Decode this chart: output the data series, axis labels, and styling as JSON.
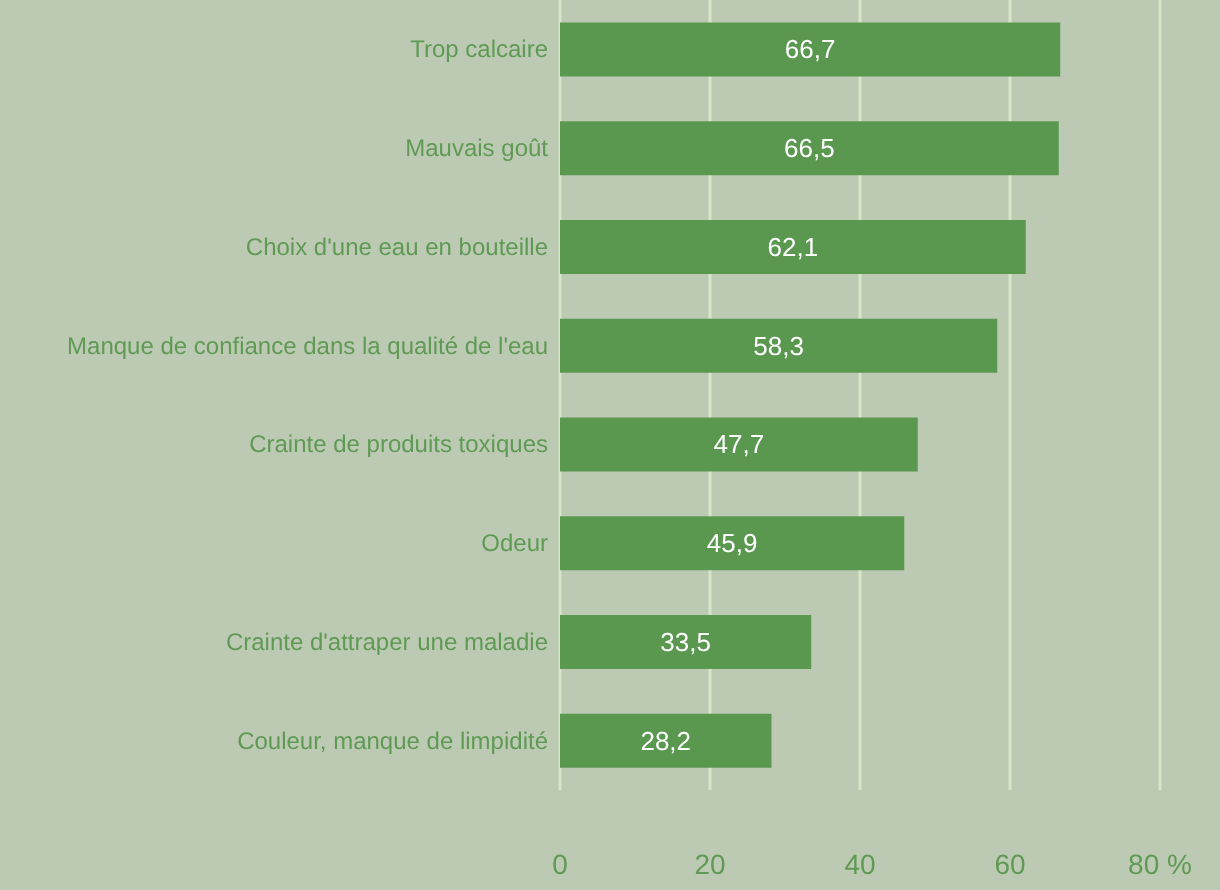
{
  "chart_data": {
    "type": "bar",
    "orientation": "horizontal",
    "categories": [
      "Trop calcaire",
      "Mauvais goût",
      "Choix d'une eau en bouteille",
      "Manque de confiance dans la qualité de l'eau",
      "Crainte de produits toxiques",
      "Odeur",
      "Crainte d'attraper une maladie",
      "Couleur, manque de limpidité"
    ],
    "values": [
      66.7,
      66.5,
      62.1,
      58.3,
      47.7,
      45.9,
      33.5,
      28.2
    ],
    "value_labels": [
      "66,7",
      "66,5",
      "62,1",
      "58,3",
      "47,7",
      "45,9",
      "33,5",
      "28,2"
    ],
    "color": "#5a9850",
    "xlim": [
      0,
      80
    ],
    "xticks": [
      0,
      20,
      40,
      60,
      {
        "value": 80,
        "label": "80 %"
      }
    ],
    "grid": "x"
  }
}
